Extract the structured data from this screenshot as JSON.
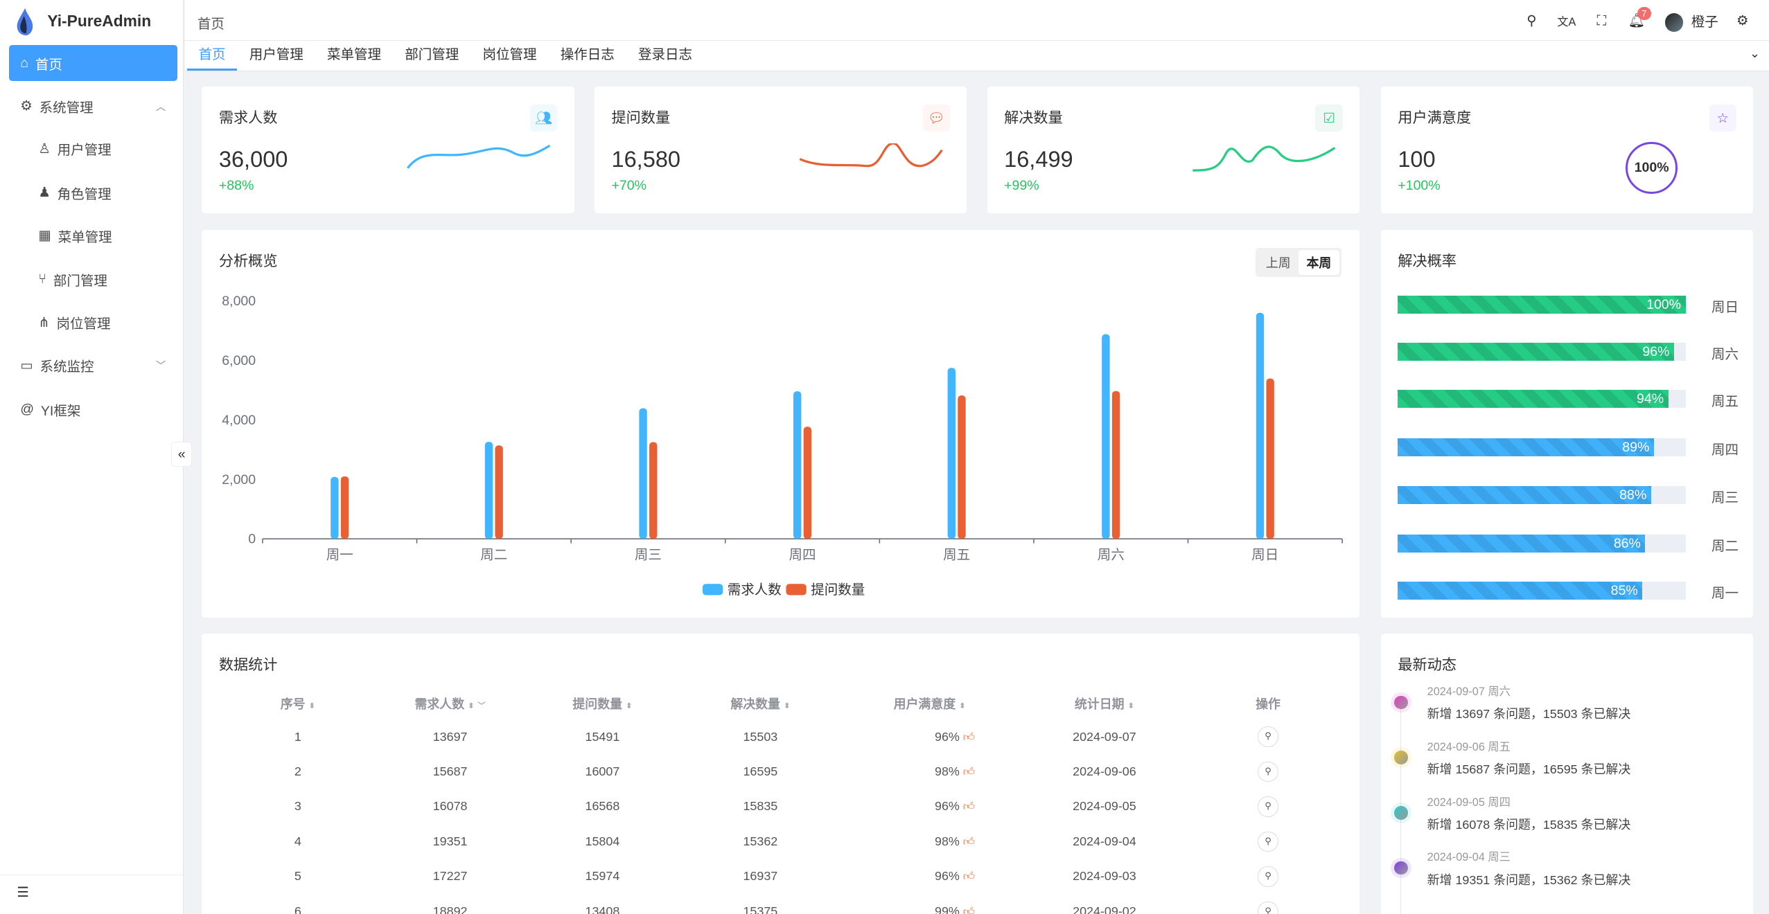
{
  "app": {
    "title": "Yi-PureAdmin"
  },
  "sidebar": {
    "items": [
      {
        "label": "首页",
        "icon": "home-icon",
        "active": true
      },
      {
        "label": "系统管理",
        "icon": "gear-icon",
        "expanded": true
      },
      {
        "label": "用户管理",
        "icon": "user-icon"
      },
      {
        "label": "角色管理",
        "icon": "role-icon"
      },
      {
        "label": "菜单管理",
        "icon": "grid-icon"
      },
      {
        "label": "部门管理",
        "icon": "branch-icon"
      },
      {
        "label": "岗位管理",
        "icon": "network-icon"
      },
      {
        "label": "系统监控",
        "icon": "monitor-icon"
      },
      {
        "label": "YI框架",
        "icon": "at-icon"
      }
    ]
  },
  "header": {
    "breadcrumb": "首页",
    "notification_count": "7",
    "username": "橙子"
  },
  "tabs": [
    "首页",
    "用户管理",
    "菜单管理",
    "部门管理",
    "岗位管理",
    "操作日志",
    "登录日志"
  ],
  "stats": [
    {
      "title": "需求人数",
      "value": "36,000",
      "percent": "+88%",
      "color": "#41b6ff",
      "bg": "#effaff"
    },
    {
      "title": "提问数量",
      "value": "16,580",
      "percent": "+70%",
      "color": "#e85f33",
      "bg": "#fff5f4"
    },
    {
      "title": "解决数量",
      "value": "16,499",
      "percent": "+99%",
      "color": "#26ce83",
      "bg": "#eff8f4"
    },
    {
      "title": "用户满意度",
      "value": "100",
      "percent": "+100%",
      "color": "#7846e5",
      "bg": "#f6f4fe",
      "ring": "100%"
    }
  ],
  "overview": {
    "title": "分析概览",
    "toggle": [
      "上周",
      "本周"
    ],
    "selected": "本周"
  },
  "chart_data": {
    "type": "bar",
    "categories": [
      "周一",
      "周二",
      "周三",
      "周四",
      "周五",
      "周六",
      "周日"
    ],
    "series": [
      {
        "name": "需求人数",
        "color": "#41b6ff",
        "values": [
          2080,
          3260,
          4390,
          4960,
          5750,
          6880,
          7600
        ]
      },
      {
        "name": "提问数量",
        "color": "#e86033",
        "values": [
          2100,
          3140,
          3250,
          3770,
          4820,
          4970,
          5390
        ]
      }
    ],
    "yticks": [
      "0",
      "2,000",
      "4,000",
      "6,000",
      "8,000"
    ],
    "ylim": [
      0,
      8000
    ],
    "legend": "bottom"
  },
  "rate": {
    "title": "解决概率",
    "rows": [
      {
        "label": "周日",
        "value": 100,
        "text": "100%",
        "color": "green"
      },
      {
        "label": "周六",
        "value": 96,
        "text": "96%",
        "color": "green"
      },
      {
        "label": "周五",
        "value": 94,
        "text": "94%",
        "color": "green"
      },
      {
        "label": "周四",
        "value": 89,
        "text": "89%",
        "color": "blue"
      },
      {
        "label": "周三",
        "value": 88,
        "text": "88%",
        "color": "blue"
      },
      {
        "label": "周二",
        "value": 86,
        "text": "86%",
        "color": "blue"
      },
      {
        "label": "周一",
        "value": 85,
        "text": "85%",
        "color": "blue"
      }
    ]
  },
  "table": {
    "title": "数据统计",
    "columns": [
      "序号",
      "需求人数",
      "提问数量",
      "解决数量",
      "用户满意度",
      "统计日期",
      "操作"
    ],
    "rows": [
      [
        "1",
        "13697",
        "15491",
        "15503",
        "96%",
        "2024-09-07"
      ],
      [
        "2",
        "15687",
        "16007",
        "16595",
        "98%",
        "2024-09-06"
      ],
      [
        "3",
        "16078",
        "16568",
        "15835",
        "96%",
        "2024-09-05"
      ],
      [
        "4",
        "19351",
        "15804",
        "15362",
        "98%",
        "2024-09-04"
      ],
      [
        "5",
        "17227",
        "15974",
        "16937",
        "96%",
        "2024-09-03"
      ],
      [
        "6",
        "18892",
        "13408",
        "15375",
        "99%",
        "2024-09-02"
      ]
    ]
  },
  "activity": {
    "title": "最新动态",
    "items": [
      {
        "date": "2024-09-07 周六",
        "text": "新增 13697 条问题，15503 条已解决",
        "color": "#e040c0"
      },
      {
        "date": "2024-09-06 周五",
        "text": "新增 15687 条问题，16595 条已解决",
        "color": "#e0c030"
      },
      {
        "date": "2024-09-05 周四",
        "text": "新增 16078 条问题，15835 条已解决",
        "color": "#30c8c8"
      },
      {
        "date": "2024-09-04 周三",
        "text": "新增 19351 条问题，15362 条已解决",
        "color": "#8040e0"
      }
    ]
  }
}
